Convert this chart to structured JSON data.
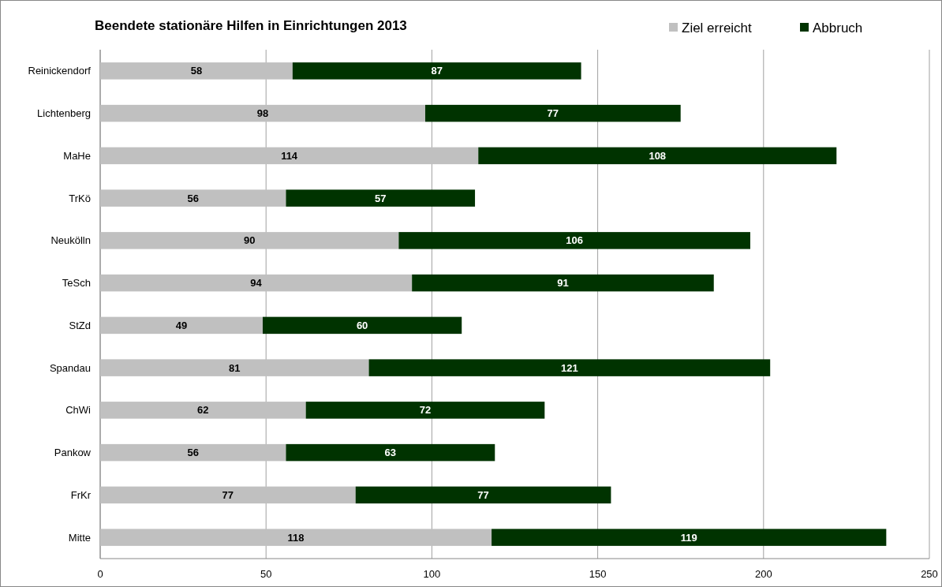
{
  "chart_data": {
    "type": "bar",
    "title": "Beendete stationäre Hilfen in Einrichtungen 2013",
    "orientation": "horizontal",
    "stacked": true,
    "categories": [
      "Reinickendorf",
      "Lichtenberg",
      "MaHe",
      "TrKö",
      "Neukölln",
      "TeSch",
      "StZd",
      "Spandau",
      "ChWi",
      "Pankow",
      "FrKr",
      "Mitte"
    ],
    "series": [
      {
        "name": "Ziel erreicht",
        "color": "#c0c0c0",
        "values": [
          58,
          98,
          114,
          56,
          90,
          94,
          49,
          81,
          62,
          56,
          77,
          118
        ]
      },
      {
        "name": "Abbruch",
        "color": "#003300",
        "values": [
          87,
          77,
          108,
          57,
          106,
          91,
          60,
          121,
          72,
          63,
          77,
          119
        ]
      }
    ],
    "xlim": [
      0,
      250
    ],
    "xticks": [
      0,
      50,
      100,
      150,
      200,
      250
    ],
    "grid": "x",
    "legend": "top right",
    "data_labels": true
  }
}
